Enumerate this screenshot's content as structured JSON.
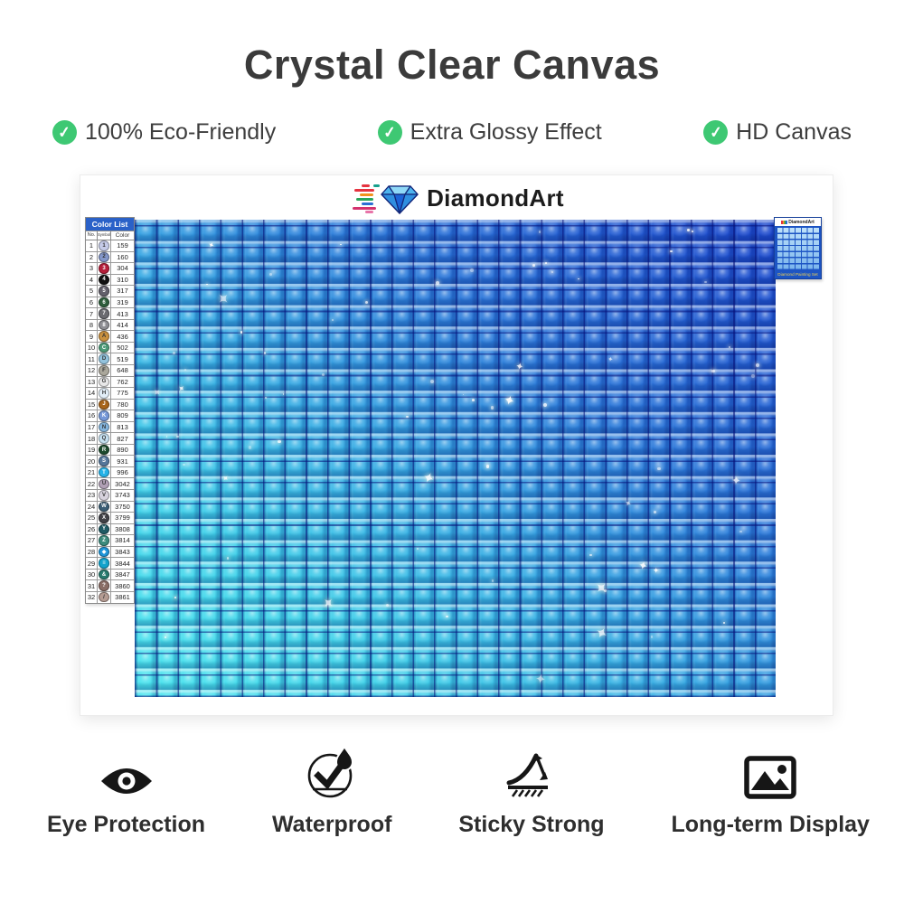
{
  "title": "Crystal Clear Canvas",
  "brand": {
    "name": "DiamondArt"
  },
  "features": [
    {
      "icon": "check-icon",
      "label": "100% Eco-Friendly"
    },
    {
      "icon": "check-icon",
      "label": "Extra Glossy Effect"
    },
    {
      "icon": "check-icon",
      "label": "HD Canvas"
    }
  ],
  "color_list": {
    "title": "Color List",
    "headers": [
      "No.",
      "Symbol",
      "Color"
    ],
    "rows": [
      {
        "no": "1",
        "symbol": "1",
        "code": "159",
        "hex": "#c5cbe8"
      },
      {
        "no": "2",
        "symbol": "2",
        "code": "160",
        "hex": "#8396c9"
      },
      {
        "no": "3",
        "symbol": "3",
        "code": "304",
        "hex": "#b51f3a"
      },
      {
        "no": "4",
        "symbol": "4",
        "code": "310",
        "hex": "#111111"
      },
      {
        "no": "5",
        "symbol": "5",
        "code": "317",
        "hex": "#63606b"
      },
      {
        "no": "6",
        "symbol": "6",
        "code": "319",
        "hex": "#2f5e3c"
      },
      {
        "no": "7",
        "symbol": "7",
        "code": "413",
        "hex": "#6b6b70"
      },
      {
        "no": "8",
        "symbol": "8",
        "code": "414",
        "hex": "#8f8f94"
      },
      {
        "no": "9",
        "symbol": "A",
        "code": "436",
        "hex": "#c9913f"
      },
      {
        "no": "10",
        "symbol": "C",
        "code": "502",
        "hex": "#4c9a77"
      },
      {
        "no": "11",
        "symbol": "D",
        "code": "519",
        "hex": "#93c3dd"
      },
      {
        "no": "12",
        "symbol": "F",
        "code": "648",
        "hex": "#aaa79b"
      },
      {
        "no": "13",
        "symbol": "G",
        "code": "762",
        "hex": "#e8e8e8"
      },
      {
        "no": "14",
        "symbol": "H",
        "code": "775",
        "hex": "#e2eef8"
      },
      {
        "no": "15",
        "symbol": "J",
        "code": "780",
        "hex": "#a8651a"
      },
      {
        "no": "16",
        "symbol": "K",
        "code": "809",
        "hex": "#7698d8"
      },
      {
        "no": "17",
        "symbol": "N",
        "code": "813",
        "hex": "#84b5dd"
      },
      {
        "no": "18",
        "symbol": "Q",
        "code": "827",
        "hex": "#c5e0f0"
      },
      {
        "no": "19",
        "symbol": "R",
        "code": "890",
        "hex": "#1d4a2d"
      },
      {
        "no": "20",
        "symbol": "S",
        "code": "931",
        "hex": "#56779a"
      },
      {
        "no": "21",
        "symbol": "T",
        "code": "996",
        "hex": "#25b3e8"
      },
      {
        "no": "22",
        "symbol": "U",
        "code": "3042",
        "hex": "#b1a0b5"
      },
      {
        "no": "23",
        "symbol": "V",
        "code": "3743",
        "hex": "#d7d2dd"
      },
      {
        "no": "24",
        "symbol": "W",
        "code": "3750",
        "hex": "#3a5d75"
      },
      {
        "no": "25",
        "symbol": "X",
        "code": "3799",
        "hex": "#414146"
      },
      {
        "no": "26",
        "symbol": "Y",
        "code": "3808",
        "hex": "#1f5a64"
      },
      {
        "no": "27",
        "symbol": "Z",
        "code": "3814",
        "hex": "#3d8b7d"
      },
      {
        "no": "28",
        "symbol": "◆",
        "code": "3843",
        "hex": "#1f95d8"
      },
      {
        "no": "29",
        "symbol": "≡",
        "code": "3844",
        "hex": "#12a3cc"
      },
      {
        "no": "30",
        "symbol": "&",
        "code": "3847",
        "hex": "#277a6e"
      },
      {
        "no": "31",
        "symbol": "?",
        "code": "3860",
        "hex": "#8a6e66"
      },
      {
        "no": "32",
        "symbol": "/",
        "code": "3861",
        "hex": "#b59c93"
      }
    ]
  },
  "thumbnail": {
    "brand": "DiamondArt",
    "caption": "Diamond Painting Set"
  },
  "bottom_features": [
    {
      "icon": "eye-icon",
      "label": "Eye Protection"
    },
    {
      "icon": "waterproof-icon",
      "label": "Waterproof"
    },
    {
      "icon": "sticky-icon",
      "label": "Sticky Strong"
    },
    {
      "icon": "display-icon",
      "label": "Long-term Display"
    }
  ],
  "colors": {
    "accent_green": "#3ec873",
    "canvas_light": "#4ae6ef",
    "canvas_dark": "#1c47cd",
    "list_header_bg": "#2a61c8"
  }
}
